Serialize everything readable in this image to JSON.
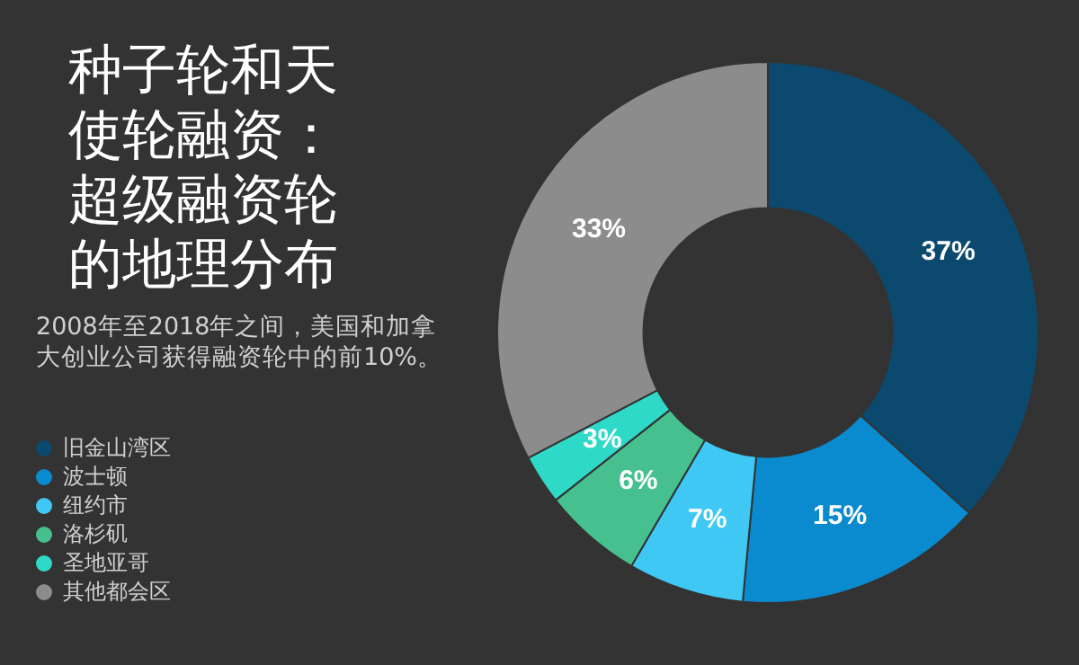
{
  "chart_data": {
    "type": "donut",
    "title": "种子轮和天使轮融资：超级融资轮的地理分布",
    "subtitle": "2008年至2018年之间，美国和加拿大创业公司获得融资轮中的前10%。",
    "categories": [
      "旧金山湾区",
      "波士顿",
      "纽约市",
      "洛杉矶",
      "圣地亚哥",
      "其他都会区"
    ],
    "values": [
      37,
      15,
      7,
      6,
      3,
      33
    ],
    "colors": [
      "#0b4a6e",
      "#0a8bd0",
      "#3fc8f4",
      "#46c08f",
      "#2fd9c8",
      "#8c8c8c"
    ],
    "value_labels": [
      "37%",
      "15%",
      "7%",
      "6%",
      "3%",
      "33%"
    ],
    "legend": "left"
  }
}
